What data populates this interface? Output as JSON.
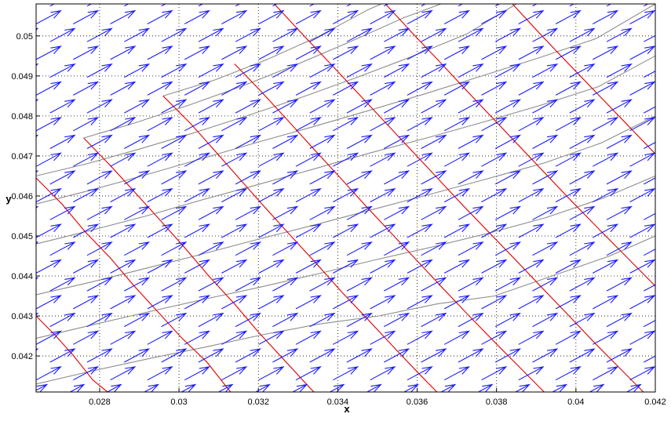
{
  "chart_data": {
    "type": "vector-field",
    "xlabel": "x",
    "ylabel": "y",
    "xlim": [
      0.0264,
      0.042
    ],
    "ylim": [
      0.0411,
      0.0508
    ],
    "x_ticks": [
      "0.028",
      "0.03",
      "0.032",
      "0.034",
      "0.036",
      "0.038",
      "0.04",
      "0.042"
    ],
    "y_ticks": [
      "0.042",
      "0.043",
      "0.044",
      "0.045",
      "0.046",
      "0.047",
      "0.048",
      "0.049",
      "0.05"
    ],
    "grid": true,
    "colors": {
      "arrows": "#1a1aff",
      "curves_a": "#8c8c8c",
      "curves_b": "#e01010",
      "grid": "#000000"
    },
    "grid_mesh": {
      "rows": [
        [
          [
            0.0264,
            0.0413
          ],
          [
            0.02783,
            0.04163
          ],
          [
            0.02928,
            0.04194
          ],
          [
            0.0307,
            0.04223
          ],
          [
            0.0321,
            0.04253
          ],
          [
            0.03355,
            0.0428
          ],
          [
            0.03503,
            0.043
          ],
          [
            0.0365,
            0.0433
          ],
          [
            0.03795,
            0.0435
          ],
          [
            0.0394,
            0.044
          ],
          [
            0.04085,
            0.0445
          ],
          [
            0.042,
            0.045
          ]
        ],
        [
          [
            0.0264,
            0.04244
          ],
          [
            0.02782,
            0.04278
          ],
          [
            0.02922,
            0.0431
          ],
          [
            0.03064,
            0.04342
          ],
          [
            0.03204,
            0.04372
          ],
          [
            0.03348,
            0.04405
          ],
          [
            0.03493,
            0.0444
          ],
          [
            0.0364,
            0.04473
          ],
          [
            0.03784,
            0.04508
          ],
          [
            0.03925,
            0.04546
          ],
          [
            0.0407,
            0.04595
          ],
          [
            0.042,
            0.0465
          ]
        ],
        [
          [
            0.0264,
            0.04353
          ],
          [
            0.0278,
            0.04385
          ],
          [
            0.0292,
            0.0442
          ],
          [
            0.0306,
            0.04455
          ],
          [
            0.032,
            0.04492
          ],
          [
            0.03343,
            0.04528
          ],
          [
            0.03487,
            0.04566
          ],
          [
            0.03632,
            0.04604
          ],
          [
            0.03777,
            0.04643
          ],
          [
            0.03922,
            0.04683
          ],
          [
            0.04065,
            0.04733
          ],
          [
            0.042,
            0.048
          ]
        ],
        [
          [
            0.0264,
            0.0448
          ],
          [
            0.02778,
            0.04514
          ],
          [
            0.02917,
            0.0455
          ],
          [
            0.03057,
            0.0459
          ],
          [
            0.03197,
            0.04628
          ],
          [
            0.03338,
            0.04667
          ],
          [
            0.0348,
            0.04707
          ],
          [
            0.03624,
            0.04745
          ],
          [
            0.03768,
            0.04785
          ],
          [
            0.03912,
            0.04827
          ],
          [
            0.04056,
            0.04873
          ],
          [
            0.042,
            0.0495
          ]
        ],
        [
          [
            0.0264,
            0.0458
          ],
          [
            0.02776,
            0.04614
          ],
          [
            0.02914,
            0.04652
          ],
          [
            0.03053,
            0.04692
          ],
          [
            0.03193,
            0.04733
          ],
          [
            0.03334,
            0.04772
          ],
          [
            0.03476,
            0.04813
          ],
          [
            0.03619,
            0.04855
          ],
          [
            0.03763,
            0.049
          ],
          [
            0.03906,
            0.04945
          ],
          [
            0.0405,
            0.04993
          ],
          [
            0.042,
            0.0508
          ]
        ],
        [
          [
            0.0264,
            0.0465
          ],
          [
            0.0277,
            0.04681
          ],
          [
            0.029,
            0.04717
          ],
          [
            0.03035,
            0.04757
          ],
          [
            0.0317,
            0.048
          ],
          [
            0.03305,
            0.04845
          ],
          [
            0.03445,
            0.04895
          ],
          [
            0.03585,
            0.04948
          ],
          [
            0.03725,
            0.05005
          ],
          [
            0.0385,
            0.0508
          ]
        ],
        [
          [
            0.0276,
            0.04745
          ],
          [
            0.0289,
            0.04783
          ],
          [
            0.03025,
            0.04827
          ],
          [
            0.0316,
            0.04875
          ],
          [
            0.03295,
            0.04928
          ],
          [
            0.0343,
            0.04985
          ],
          [
            0.03565,
            0.05045
          ],
          [
            0.0366,
            0.0508
          ]
        ],
        [
          [
            0.0296,
            0.0485
          ],
          [
            0.0309,
            0.0489
          ],
          [
            0.0322,
            0.0494
          ],
          [
            0.0335,
            0.04998
          ],
          [
            0.03475,
            0.05065
          ],
          [
            0.0351,
            0.0508
          ]
        ]
      ],
      "cols": [
        [
          [
            0.0264,
            0.04645
          ],
          [
            0.02705,
            0.0458
          ],
          [
            0.02764,
            0.0451
          ],
          [
            0.02827,
            0.04445
          ],
          [
            0.02887,
            0.04375
          ],
          [
            0.02947,
            0.0431
          ],
          [
            0.03007,
            0.04245
          ],
          [
            0.0307,
            0.04185
          ],
          [
            0.0313,
            0.0411
          ]
        ],
        [
          [
            0.0264,
            0.043
          ],
          [
            0.0269,
            0.0425
          ],
          [
            0.02735,
            0.042
          ],
          [
            0.02783,
            0.0414
          ],
          [
            0.0282,
            0.0411
          ]
        ],
        [
          [
            0.0276,
            0.04745
          ],
          [
            0.02828,
            0.04675
          ],
          [
            0.0289,
            0.04608
          ],
          [
            0.02952,
            0.0454
          ],
          [
            0.03015,
            0.0447
          ],
          [
            0.03075,
            0.044
          ],
          [
            0.0314,
            0.0433
          ],
          [
            0.032,
            0.0426
          ],
          [
            0.03265,
            0.0419
          ],
          [
            0.0333,
            0.0412
          ],
          [
            0.0334,
            0.0411
          ]
        ],
        [
          [
            0.0296,
            0.0485
          ],
          [
            0.0303,
            0.0478
          ],
          [
            0.03093,
            0.0471
          ],
          [
            0.03155,
            0.0464
          ],
          [
            0.03218,
            0.0457
          ],
          [
            0.03282,
            0.045
          ],
          [
            0.03347,
            0.0443
          ],
          [
            0.0341,
            0.0436
          ],
          [
            0.03477,
            0.0429
          ],
          [
            0.03543,
            0.0422
          ],
          [
            0.0361,
            0.0415
          ],
          [
            0.0365,
            0.0411
          ]
        ],
        [
          [
            0.0314,
            0.0493
          ],
          [
            0.03208,
            0.0486
          ],
          [
            0.03273,
            0.0479
          ],
          [
            0.03337,
            0.0472
          ],
          [
            0.03402,
            0.0465
          ],
          [
            0.03466,
            0.0458
          ],
          [
            0.03532,
            0.0451
          ],
          [
            0.03598,
            0.0444
          ],
          [
            0.03664,
            0.0437
          ],
          [
            0.03731,
            0.043
          ],
          [
            0.038,
            0.0423
          ],
          [
            0.0387,
            0.0416
          ],
          [
            0.0392,
            0.0411
          ]
        ],
        [
          [
            0.0324,
            0.0508
          ],
          [
            0.03315,
            0.05
          ],
          [
            0.03382,
            0.0493
          ],
          [
            0.03448,
            0.0486
          ],
          [
            0.03514,
            0.0479
          ],
          [
            0.0358,
            0.0472
          ],
          [
            0.03646,
            0.0465
          ],
          [
            0.03712,
            0.0458
          ],
          [
            0.0378,
            0.0451
          ],
          [
            0.03848,
            0.0444
          ],
          [
            0.03915,
            0.0437
          ],
          [
            0.03983,
            0.043
          ],
          [
            0.0405,
            0.0423
          ],
          [
            0.0412,
            0.0416
          ],
          [
            0.0417,
            0.0411
          ]
        ],
        [
          [
            0.0352,
            0.0508
          ],
          [
            0.0359,
            0.05005
          ],
          [
            0.03657,
            0.04935
          ],
          [
            0.03723,
            0.04865
          ],
          [
            0.0379,
            0.04795
          ],
          [
            0.03857,
            0.04725
          ],
          [
            0.03924,
            0.04655
          ],
          [
            0.03991,
            0.04585
          ],
          [
            0.0406,
            0.04515
          ],
          [
            0.0413,
            0.04445
          ],
          [
            0.042,
            0.04375
          ]
        ],
        [
          [
            0.0384,
            0.0508
          ],
          [
            0.03905,
            0.0501
          ],
          [
            0.03972,
            0.0494
          ],
          [
            0.0404,
            0.0487
          ],
          [
            0.04108,
            0.048
          ],
          [
            0.04176,
            0.0473
          ],
          [
            0.042,
            0.04705
          ]
        ]
      ]
    },
    "vectors": {
      "origin_x": 0.0264,
      "origin_y": 0.0414,
      "step_x": 0.000935,
      "step_y": 0.000445,
      "row_shift": 0.0007,
      "dx": 0.00062,
      "dy": 0.00033
    }
  }
}
